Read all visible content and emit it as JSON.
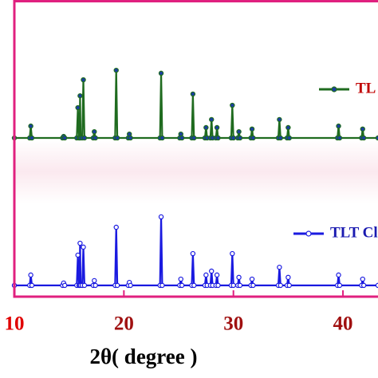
{
  "chart_data": {
    "type": "line",
    "x_label": "2θ( degree )",
    "xlim": [
      10,
      43.2
    ],
    "xticks": [
      10,
      20,
      30,
      40
    ],
    "ylim": [
      0,
      100
    ],
    "x": [
      10,
      11.4,
      11.5,
      11.6,
      14.4,
      14.5,
      14.6,
      15.7,
      15.8,
      15.9,
      15.95,
      16.0,
      16.05,
      16.2,
      16.3,
      16.4,
      17.2,
      17.3,
      17.4,
      19.2,
      19.3,
      19.4,
      20.4,
      20.5,
      20.6,
      23.3,
      23.4,
      23.5,
      25.1,
      25.2,
      25.3,
      26.2,
      26.3,
      26.4,
      27.4,
      27.5,
      27.6,
      27.9,
      28.0,
      28.1,
      28.4,
      28.5,
      28.6,
      29.8,
      29.9,
      30.0,
      30.4,
      30.5,
      30.6,
      31.6,
      31.7,
      31.8,
      34.1,
      34.2,
      34.3,
      34.9,
      35.0,
      35.1,
      39.5,
      39.6,
      39.7,
      41.7,
      41.8,
      41.9,
      43.2
    ],
    "series": [
      {
        "name": "TL",
        "color": "#1f6b1f",
        "marker_color": "#1a3fa0",
        "values": [
          53.5,
          53.5,
          57.5,
          53.5,
          53.5,
          54,
          53.5,
          53.5,
          63.7,
          53.5,
          53.5,
          67.7,
          53.5,
          53.5,
          73.1,
          53.5,
          53.5,
          55.6,
          53.5,
          53.5,
          76.3,
          53.5,
          53.5,
          54.8,
          53.5,
          53.5,
          75.3,
          53.5,
          53.5,
          54.8,
          53.5,
          53.5,
          68.3,
          53.5,
          53.5,
          57,
          53.5,
          53.5,
          59.7,
          53.5,
          53.5,
          57,
          53.5,
          53.5,
          64.5,
          53.5,
          53.5,
          55.6,
          53.5,
          53.5,
          56.5,
          53.5,
          53.5,
          59.7,
          53.5,
          53.5,
          57,
          53.5,
          53.5,
          57.5,
          53.5,
          53.5,
          56.5,
          53.5,
          53.5
        ]
      },
      {
        "name": "TLT Cl",
        "color": "#1a1ae0",
        "marker_color": "#ffffff",
        "values": [
          3.8,
          3.8,
          7.3,
          3.8,
          3.8,
          4.6,
          3.8,
          3.8,
          14,
          3.8,
          3.8,
          18,
          3.8,
          3.8,
          16.7,
          3.8,
          3.8,
          5.4,
          3.8,
          3.8,
          23.4,
          3.8,
          3.8,
          4.8,
          3.8,
          3.8,
          26.9,
          3.8,
          3.8,
          5.9,
          3.8,
          3.8,
          14.5,
          3.8,
          3.8,
          7.3,
          3.8,
          3.8,
          8.6,
          3.8,
          3.8,
          7.3,
          3.8,
          3.8,
          14.5,
          3.8,
          3.8,
          6.5,
          3.8,
          3.8,
          5.9,
          3.8,
          3.8,
          9.9,
          3.8,
          3.8,
          6.5,
          3.8,
          3.8,
          7.3,
          3.8,
          3.8,
          5.9,
          3.8,
          3.8
        ]
      }
    ]
  }
}
